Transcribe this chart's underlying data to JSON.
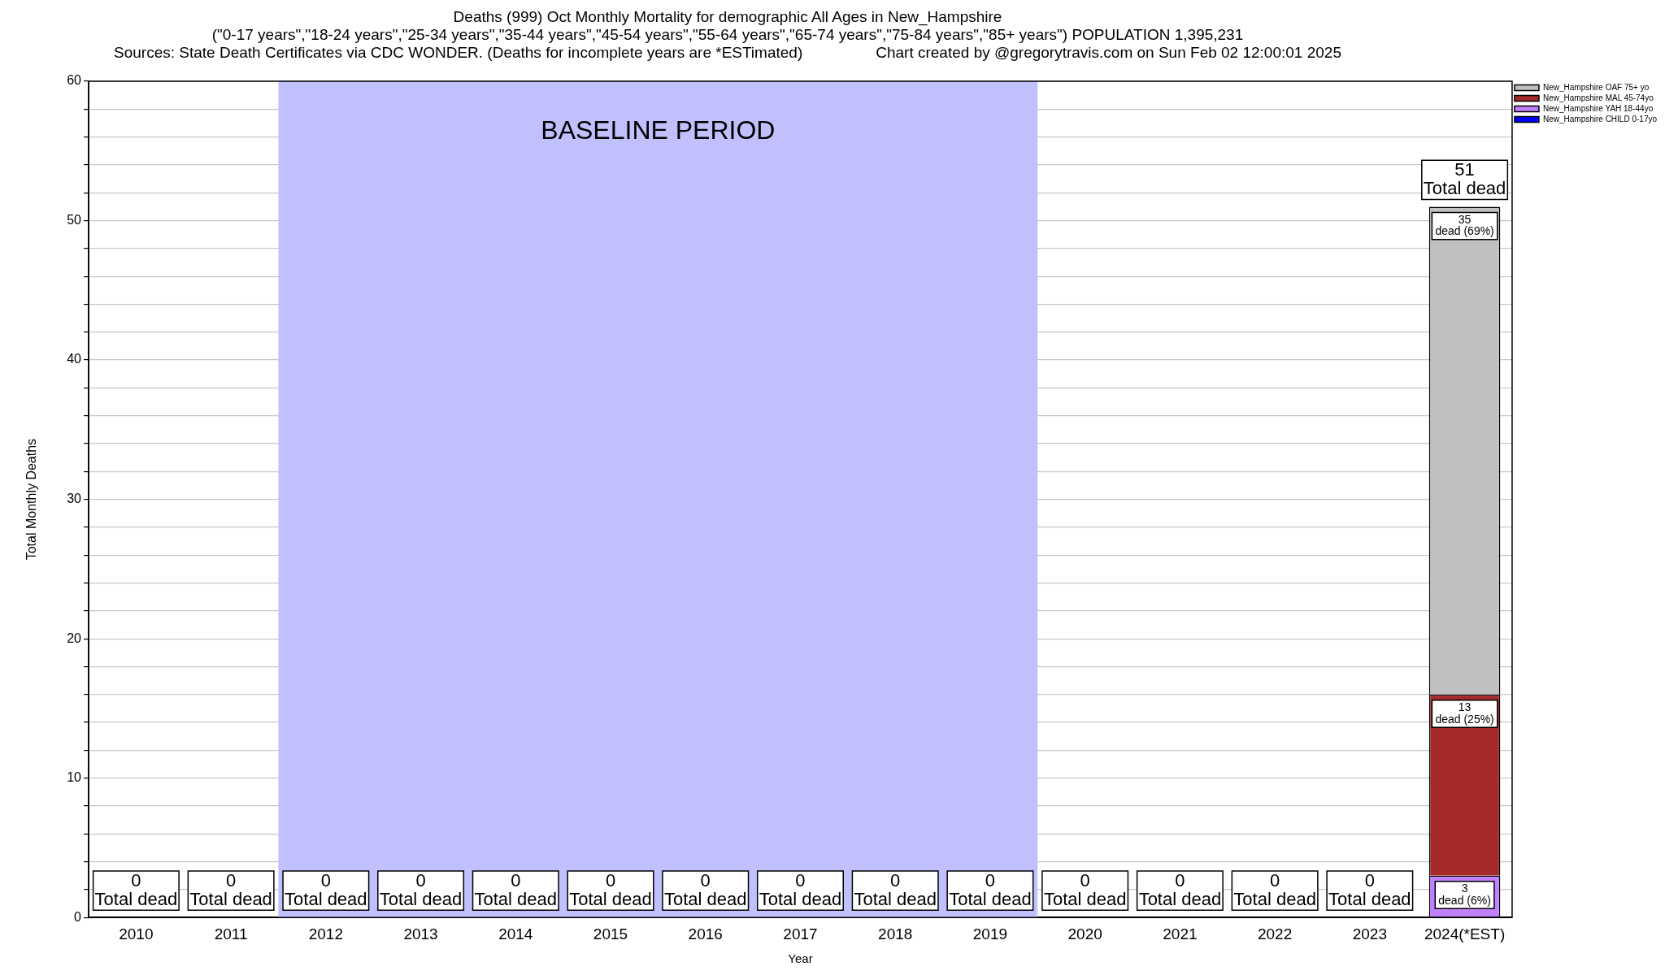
{
  "chart_data": {
    "type": "bar",
    "stacked": true,
    "title": "Deaths (999) Oct Monthly Mortality for demographic All Ages in New_Hampshire",
    "subtitle": "(\"0-17 years\",\"18-24 years\",\"25-34 years\",\"35-44 years\",\"45-54 years\",\"55-64 years\",\"65-74 years\",\"75-84 years\",\"85+ years\") POPULATION 1,395,231",
    "annotations": [
      "Sources: State Death Certificates via CDC WONDER. (Deaths for incomplete years are *ESTimated)",
      "Chart created by @gregorytravis.com on Sun Feb 02 12:00:01 2025"
    ],
    "xlabel": "Year",
    "ylabel": "Total Monthly Deaths",
    "categories": [
      "2010",
      "2011",
      "2012",
      "2013",
      "2014",
      "2015",
      "2016",
      "2017",
      "2018",
      "2019",
      "2020",
      "2021",
      "2022",
      "2023",
      "2024(*EST)"
    ],
    "series": [
      {
        "name": "New_Hampshire CHILD 0-17yo",
        "color": "#0000ff",
        "values": [
          0,
          0,
          0,
          0,
          0,
          0,
          0,
          0,
          0,
          0,
          0,
          0,
          0,
          0,
          0
        ],
        "value_labels": [
          null,
          null,
          null,
          null,
          null,
          null,
          null,
          null,
          null,
          null,
          null,
          null,
          null,
          null,
          null
        ]
      },
      {
        "name": "New_Hampshire YAH 18-44yo",
        "color": "#c080ff",
        "values": [
          0,
          0,
          0,
          0,
          0,
          0,
          0,
          0,
          0,
          0,
          0,
          0,
          0,
          0,
          3
        ],
        "value_labels": [
          null,
          null,
          null,
          null,
          null,
          null,
          null,
          null,
          null,
          null,
          null,
          null,
          null,
          null,
          "3\ndead (6%)"
        ]
      },
      {
        "name": "New_Hampshire MAL 45-74yo",
        "color": "#a52a2a",
        "values": [
          0,
          0,
          0,
          0,
          0,
          0,
          0,
          0,
          0,
          0,
          0,
          0,
          0,
          0,
          13
        ],
        "value_labels": [
          null,
          null,
          null,
          null,
          null,
          null,
          null,
          null,
          null,
          null,
          null,
          null,
          null,
          null,
          "13\ndead (25%)"
        ]
      },
      {
        "name": "New_Hampshire OAF 75+ yo",
        "color": "#c0c0c0",
        "values": [
          0,
          0,
          0,
          0,
          0,
          0,
          0,
          0,
          0,
          0,
          0,
          0,
          0,
          0,
          35
        ],
        "value_labels": [
          null,
          null,
          null,
          null,
          null,
          null,
          null,
          null,
          null,
          null,
          null,
          null,
          null,
          null,
          "35\ndead (69%)"
        ]
      }
    ],
    "totals": [
      "0\nTotal dead",
      "0\nTotal dead",
      "0\nTotal dead",
      "0\nTotal dead",
      "0\nTotal dead",
      "0\nTotal dead",
      "0\nTotal dead",
      "0\nTotal dead",
      "0\nTotal dead",
      "0\nTotal dead",
      "0\nTotal dead",
      "0\nTotal dead",
      "0\nTotal dead",
      "0\nTotal dead",
      "51\nTotal dead"
    ],
    "bands": [
      {
        "axis": "x",
        "from": "2012",
        "to": "2019",
        "label": "BASELINE PERIOD",
        "color": "#c0c0ff"
      }
    ],
    "ylim": [
      0,
      60
    ],
    "yticks": [
      0,
      {
        "value": 2,
        "label": null
      },
      {
        "value": 4,
        "label": null
      },
      {
        "value": 6,
        "label": null
      },
      {
        "value": 8,
        "label": null
      },
      10,
      {
        "value": 12,
        "label": null
      },
      {
        "value": 14,
        "label": null
      },
      {
        "value": 16,
        "label": null
      },
      {
        "value": 18,
        "label": null
      },
      20,
      {
        "value": 22,
        "label": null
      },
      {
        "value": 24,
        "label": null
      },
      {
        "value": 26,
        "label": null
      },
      {
        "value": 28,
        "label": null
      },
      30,
      {
        "value": 32,
        "label": null
      },
      {
        "value": 34,
        "label": null
      },
      {
        "value": 36,
        "label": null
      },
      {
        "value": 38,
        "label": null
      },
      40,
      {
        "value": 42,
        "label": null
      },
      {
        "value": 44,
        "label": null
      },
      {
        "value": 46,
        "label": null
      },
      {
        "value": 48,
        "label": null
      },
      50,
      {
        "value": 52,
        "label": null
      },
      {
        "value": 54,
        "label": null
      },
      {
        "value": 56,
        "label": null
      },
      {
        "value": 58,
        "label": null
      },
      60
    ],
    "grid": "y",
    "legend": "top right"
  }
}
